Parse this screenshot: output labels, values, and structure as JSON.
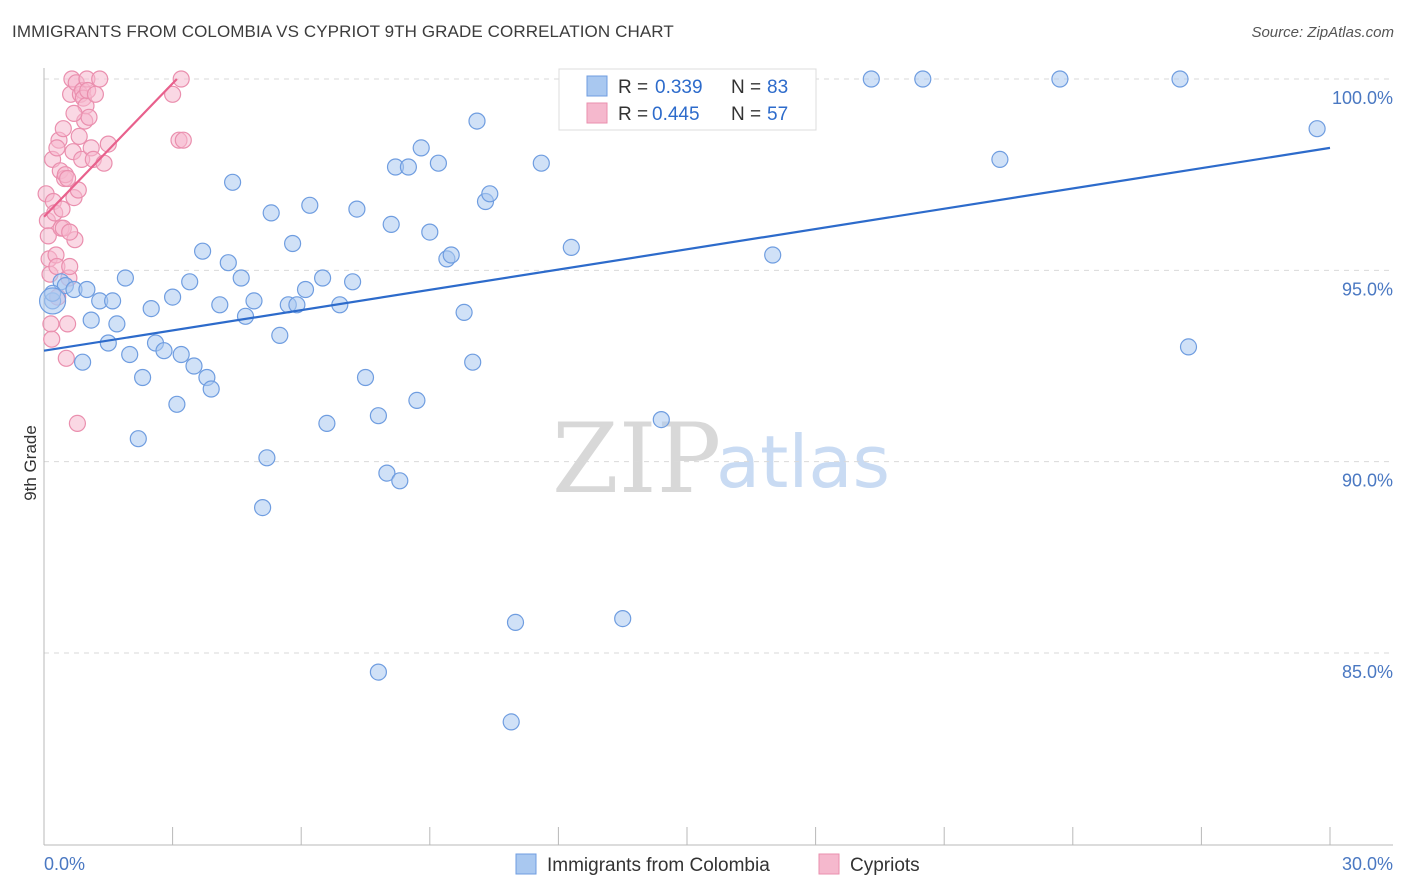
{
  "header": {
    "title": "IMMIGRANTS FROM COLOMBIA VS CYPRIOT 9TH GRADE CORRELATION CHART",
    "source": "Source: ZipAtlas.com"
  },
  "colors": {
    "blue_fill": "#a9c8f0",
    "blue_stroke": "#6f9de0",
    "blue_line": "#2d6bcb",
    "pink_fill": "#f5b8cd",
    "pink_stroke": "#ea8fae",
    "pink_line": "#e8608c",
    "grid": "#d9d9d9",
    "tick_text": "#4a78c2"
  },
  "legend": {
    "rows": [
      {
        "r_label": "R = ",
        "r_value": "0.339",
        "n_label": "N = ",
        "n_value": "83"
      },
      {
        "r_label": "R = ",
        "r_value": "0.445",
        "n_label": "N = ",
        "n_value": "57"
      }
    ]
  },
  "watermark": {
    "zip": "ZIP",
    "atlas": "atlas"
  },
  "chart_data": {
    "type": "scatter",
    "title": "IMMIGRANTS FROM COLOMBIA VS CYPRIOT 9TH GRADE CORRELATION CHART",
    "xlabel": "",
    "ylabel": "9th Grade",
    "xlim": [
      0,
      30
    ],
    "ylim": [
      80.5,
      100.8
    ],
    "x_tick_labels": [
      {
        "value": 0,
        "label": "0.0%"
      },
      {
        "value": 30,
        "label": "30.0%"
      }
    ],
    "y_tick_labels": [
      {
        "value": 100,
        "label": "100.0%"
      },
      {
        "value": 95,
        "label": "95.0%"
      },
      {
        "value": 90,
        "label": "90.0%"
      },
      {
        "value": 85,
        "label": "85.0%"
      }
    ],
    "x_minor_ticks": [
      3,
      6,
      9,
      12,
      15,
      18,
      21,
      24,
      27,
      30
    ],
    "legend_position": "top-center",
    "series": [
      {
        "name": "Immigrants from Colombia",
        "color": "blue",
        "R": 0.339,
        "N": 83,
        "trend": {
          "x": [
            0,
            30
          ],
          "y": [
            92.9,
            98.2
          ]
        },
        "points": [
          [
            0.2,
            94.2
          ],
          [
            0.4,
            94.7
          ],
          [
            0.5,
            94.6
          ],
          [
            0.7,
            94.5
          ],
          [
            0.9,
            92.6
          ],
          [
            1.0,
            94.5
          ],
          [
            1.1,
            93.7
          ],
          [
            1.3,
            94.2
          ],
          [
            1.5,
            93.1
          ],
          [
            1.6,
            94.2
          ],
          [
            1.7,
            93.6
          ],
          [
            1.9,
            94.8
          ],
          [
            2.0,
            92.8
          ],
          [
            2.2,
            90.6
          ],
          [
            2.3,
            92.2
          ],
          [
            2.5,
            94.0
          ],
          [
            2.6,
            93.1
          ],
          [
            2.8,
            92.9
          ],
          [
            3.0,
            94.3
          ],
          [
            3.1,
            91.5
          ],
          [
            3.2,
            92.8
          ],
          [
            3.4,
            94.7
          ],
          [
            3.5,
            92.5
          ],
          [
            3.7,
            95.5
          ],
          [
            3.8,
            92.2
          ],
          [
            3.9,
            91.9
          ],
          [
            4.1,
            94.1
          ],
          [
            4.3,
            95.2
          ],
          [
            4.4,
            97.3
          ],
          [
            4.6,
            94.8
          ],
          [
            4.7,
            93.8
          ],
          [
            4.9,
            94.2
          ],
          [
            5.1,
            88.8
          ],
          [
            5.2,
            90.1
          ],
          [
            5.3,
            96.5
          ],
          [
            5.5,
            93.3
          ],
          [
            5.7,
            94.1
          ],
          [
            5.8,
            95.7
          ],
          [
            5.9,
            94.1
          ],
          [
            6.1,
            94.5
          ],
          [
            6.2,
            96.7
          ],
          [
            6.5,
            94.8
          ],
          [
            6.6,
            91.0
          ],
          [
            6.9,
            94.1
          ],
          [
            7.2,
            94.7
          ],
          [
            7.3,
            96.6
          ],
          [
            7.5,
            92.2
          ],
          [
            7.8,
            91.2
          ],
          [
            8.0,
            89.7
          ],
          [
            8.1,
            96.2
          ],
          [
            8.2,
            97.7
          ],
          [
            8.3,
            89.5
          ],
          [
            8.5,
            97.7
          ],
          [
            8.7,
            91.6
          ],
          [
            8.8,
            98.2
          ],
          [
            9.0,
            96.0
          ],
          [
            9.2,
            97.8
          ],
          [
            9.4,
            95.3
          ],
          [
            9.5,
            95.4
          ],
          [
            9.8,
            93.9
          ],
          [
            10.0,
            92.6
          ],
          [
            10.1,
            98.9
          ],
          [
            10.3,
            96.8
          ],
          [
            10.4,
            97.0
          ],
          [
            11.0,
            85.8
          ],
          [
            11.6,
            97.8
          ],
          [
            12.3,
            95.6
          ],
          [
            13.5,
            85.9
          ],
          [
            14.4,
            91.1
          ],
          [
            17.0,
            95.4
          ],
          [
            19.3,
            100.0
          ],
          [
            20.5,
            100.0
          ],
          [
            22.3,
            97.9
          ],
          [
            23.7,
            100.0
          ],
          [
            26.5,
            100.0
          ],
          [
            26.7,
            93.0
          ],
          [
            29.7,
            98.7
          ],
          [
            7.8,
            84.5
          ],
          [
            10.9,
            83.2
          ],
          [
            0.2,
            94.4
          ]
        ]
      },
      {
        "name": "Cypriots",
        "color": "pink",
        "R": 0.445,
        "N": 57,
        "trend": {
          "x": [
            0,
            3.1
          ],
          "y": [
            96.4,
            100.0
          ]
        },
        "points": [
          [
            0.05,
            97.0
          ],
          [
            0.08,
            96.3
          ],
          [
            0.1,
            95.9
          ],
          [
            0.12,
            95.3
          ],
          [
            0.14,
            94.9
          ],
          [
            0.16,
            93.6
          ],
          [
            0.18,
            93.2
          ],
          [
            0.2,
            97.9
          ],
          [
            0.22,
            96.8
          ],
          [
            0.25,
            96.5
          ],
          [
            0.28,
            95.4
          ],
          [
            0.3,
            95.1
          ],
          [
            0.32,
            94.3
          ],
          [
            0.35,
            98.4
          ],
          [
            0.38,
            97.6
          ],
          [
            0.4,
            96.1
          ],
          [
            0.42,
            96.6
          ],
          [
            0.45,
            98.7
          ],
          [
            0.48,
            97.4
          ],
          [
            0.5,
            97.5
          ],
          [
            0.52,
            92.7
          ],
          [
            0.55,
            93.6
          ],
          [
            0.58,
            94.8
          ],
          [
            0.6,
            95.1
          ],
          [
            0.62,
            99.6
          ],
          [
            0.65,
            100.0
          ],
          [
            0.68,
            98.1
          ],
          [
            0.7,
            96.9
          ],
          [
            0.72,
            95.8
          ],
          [
            0.75,
            99.9
          ],
          [
            0.78,
            91.0
          ],
          [
            0.8,
            97.1
          ],
          [
            0.82,
            98.5
          ],
          [
            0.85,
            99.6
          ],
          [
            0.88,
            97.9
          ],
          [
            0.9,
            99.7
          ],
          [
            0.92,
            99.5
          ],
          [
            0.95,
            98.9
          ],
          [
            0.98,
            99.3
          ],
          [
            1.0,
            100.0
          ],
          [
            1.02,
            99.7
          ],
          [
            1.05,
            99.0
          ],
          [
            1.1,
            98.2
          ],
          [
            1.15,
            97.9
          ],
          [
            1.2,
            99.6
          ],
          [
            1.3,
            100.0
          ],
          [
            1.4,
            97.8
          ],
          [
            1.5,
            98.3
          ],
          [
            3.0,
            99.6
          ],
          [
            3.15,
            98.4
          ],
          [
            3.2,
            100.0
          ],
          [
            3.25,
            98.4
          ],
          [
            0.45,
            96.1
          ],
          [
            0.55,
            97.4
          ],
          [
            0.3,
            98.2
          ],
          [
            0.7,
            99.1
          ],
          [
            0.6,
            96.0
          ]
        ]
      }
    ]
  }
}
